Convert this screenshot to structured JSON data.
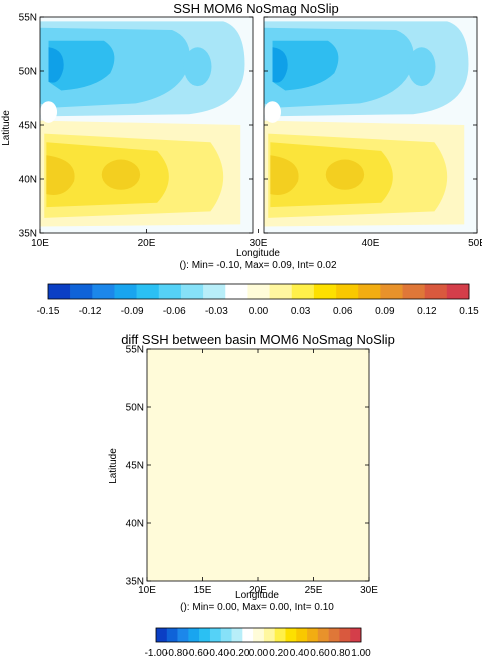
{
  "chart_data": [
    {
      "type": "heatmap",
      "title": "SSH MOM6 NoSmag NoSlip",
      "xlabel": "Longitude",
      "ylabel": "Latitude",
      "xlim": [
        10,
        50
      ],
      "ylim": [
        35,
        55
      ],
      "x_ticks": [
        "10E",
        "20E",
        "30E",
        "40E",
        "50E"
      ],
      "y_ticks": [
        "35N",
        "40N",
        "45N",
        "50N",
        "55N"
      ],
      "stats_text": "(): Min= -0.10, Max= 0.09, Int= 0.02",
      "min": -0.1,
      "max": 0.09,
      "interval": 0.02,
      "basins": [
        {
          "lon_range": [
            10,
            30
          ]
        },
        {
          "lon_range": [
            30,
            50
          ]
        }
      ],
      "colorbar": {
        "ticks": [
          "-0.15",
          "-0.12",
          "-0.09",
          "-0.06",
          "-0.03",
          "0.00",
          "0.03",
          "0.06",
          "0.09",
          "0.12",
          "0.15"
        ],
        "range": [
          -0.15,
          0.15
        ]
      }
    },
    {
      "type": "heatmap",
      "title": "diff SSH between basin MOM6 NoSmag NoSlip",
      "xlabel": "Longitude",
      "ylabel": "Latitude",
      "xlim": [
        10,
        30
      ],
      "ylim": [
        35,
        55
      ],
      "x_ticks": [
        "10E",
        "15E",
        "20E",
        "25E",
        "30E"
      ],
      "y_ticks": [
        "35N",
        "40N",
        "45N",
        "50N",
        "55N"
      ],
      "stats_text": "(): Min= 0.00, Max= 0.00, Int= 0.10",
      "min": 0.0,
      "max": 0.0,
      "interval": 0.1,
      "colorbar": {
        "ticks": [
          "-1.00",
          "-0.80",
          "-0.60",
          "-0.40",
          "-0.20",
          "0.00",
          "0.20",
          "0.40",
          "0.60",
          "0.80",
          "1.00"
        ],
        "range": [
          -1.0,
          1.0
        ]
      }
    }
  ],
  "colors": {
    "palette": [
      "#0b3fc4",
      "#0f63d8",
      "#1c87ea",
      "#19a5ef",
      "#2bc0f3",
      "#55d2f7",
      "#86e1f8",
      "#b8eef9",
      "#ffffff",
      "#fffcd9",
      "#fff7a0",
      "#fff04a",
      "#fde000",
      "#f9c800",
      "#f2ad12",
      "#e8922b",
      "#df7738",
      "#d9593e",
      "#d43e4a"
    ],
    "field_negative": [
      "#a9e6f8",
      "#6dd5f6",
      "#2fbdf0",
      "#0fa0e8"
    ],
    "field_positive": [
      "#fff8c4",
      "#fff17a",
      "#fbe43a",
      "#f3cf20"
    ],
    "diff_fill": "#fffbd9"
  }
}
